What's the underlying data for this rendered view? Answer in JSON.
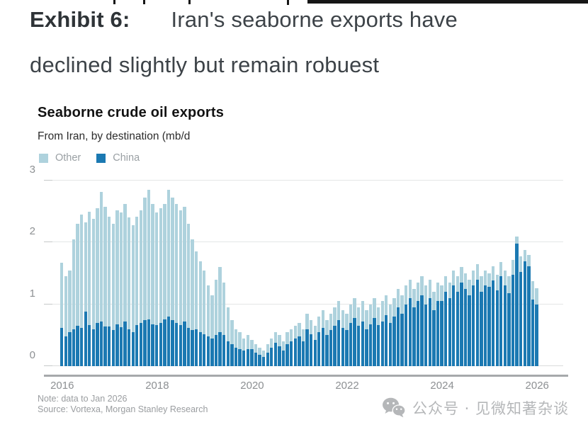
{
  "header": {
    "title_prefix": "Exhibit 6:",
    "title_line1": "Iran's seaborne exports have",
    "title_line2": "declined slightly but remain robuest"
  },
  "chart": {
    "title": "Seaborne crude oil exports",
    "subtitle": "From Iran, by destination (mb/d",
    "legend": [
      {
        "label": "Other",
        "color": "#aed2dd"
      },
      {
        "label": "China",
        "color": "#1b79b2"
      }
    ],
    "note": "Note: data to Jan 2026",
    "source": "Source: Vortexa, Morgan Stanley Research"
  },
  "watermark": {
    "text": "公众号 · 见微知著杂谈"
  },
  "chart_data": {
    "type": "bar",
    "stacked": true,
    "title": "Seaborne crude oil exports",
    "ylabel": "mb/d",
    "frequency": "monthly",
    "x_start": "2016-01",
    "x_end": "2026-01",
    "ylim": [
      0,
      3
    ],
    "y_ticks": [
      0,
      1,
      2,
      3
    ],
    "grid": true,
    "legend_position": "top-left",
    "x_tick_labels": [
      "2016",
      "2018",
      "2020",
      "2022",
      "2024",
      "2026"
    ],
    "x_tick_indices": [
      0,
      24,
      48,
      72,
      96,
      120
    ],
    "series": [
      {
        "name": "China",
        "color": "#1b79b2",
        "values": [
          0.62,
          0.48,
          0.55,
          0.6,
          0.65,
          0.62,
          0.88,
          0.66,
          0.6,
          0.7,
          0.72,
          0.64,
          0.64,
          0.58,
          0.68,
          0.63,
          0.72,
          0.6,
          0.55,
          0.66,
          0.7,
          0.74,
          0.76,
          0.68,
          0.66,
          0.7,
          0.76,
          0.8,
          0.74,
          0.7,
          0.66,
          0.72,
          0.62,
          0.58,
          0.6,
          0.55,
          0.52,
          0.48,
          0.45,
          0.5,
          0.55,
          0.5,
          0.4,
          0.35,
          0.3,
          0.28,
          0.25,
          0.28,
          0.28,
          0.22,
          0.18,
          0.15,
          0.22,
          0.3,
          0.38,
          0.32,
          0.25,
          0.35,
          0.4,
          0.45,
          0.48,
          0.4,
          0.6,
          0.52,
          0.42,
          0.55,
          0.62,
          0.5,
          0.58,
          0.65,
          0.75,
          0.62,
          0.58,
          0.7,
          0.78,
          0.65,
          0.72,
          0.6,
          0.68,
          0.78,
          0.66,
          0.72,
          0.82,
          0.7,
          0.8,
          0.95,
          0.85,
          1.0,
          1.1,
          0.95,
          1.05,
          1.15,
          1.0,
          1.1,
          0.9,
          1.05,
          1.05,
          1.2,
          1.1,
          1.3,
          1.2,
          1.35,
          1.25,
          1.15,
          1.3,
          1.4,
          1.2,
          1.3,
          1.28,
          1.38,
          1.22,
          1.45,
          1.3,
          1.18,
          1.48,
          1.98,
          1.52,
          1.7,
          1.62,
          1.08,
          1.0
        ]
      },
      {
        "name": "Other",
        "color": "#aed2dd",
        "values": [
          1.05,
          0.97,
          1.0,
          1.45,
          1.65,
          1.83,
          1.44,
          1.84,
          1.78,
          1.85,
          2.1,
          1.94,
          1.78,
          1.72,
          1.84,
          1.85,
          1.9,
          1.8,
          1.73,
          1.76,
          1.82,
          1.98,
          2.09,
          1.94,
          1.82,
          1.85,
          1.86,
          2.05,
          1.98,
          1.92,
          1.86,
          1.86,
          1.68,
          1.47,
          1.25,
          1.15,
          1.03,
          0.82,
          0.7,
          0.9,
          1.05,
          0.85,
          0.55,
          0.4,
          0.3,
          0.27,
          0.2,
          0.22,
          0.14,
          0.13,
          0.12,
          0.1,
          0.13,
          0.15,
          0.17,
          0.18,
          0.15,
          0.2,
          0.2,
          0.2,
          0.22,
          0.2,
          0.25,
          0.23,
          0.23,
          0.25,
          0.28,
          0.25,
          0.27,
          0.3,
          0.3,
          0.28,
          0.27,
          0.3,
          0.32,
          0.3,
          0.33,
          0.3,
          0.32,
          0.32,
          0.29,
          0.33,
          0.33,
          0.3,
          0.3,
          0.3,
          0.3,
          0.3,
          0.3,
          0.3,
          0.3,
          0.3,
          0.3,
          0.3,
          0.3,
          0.3,
          0.25,
          0.25,
          0.25,
          0.25,
          0.25,
          0.25,
          0.25,
          0.25,
          0.25,
          0.25,
          0.25,
          0.25,
          0.22,
          0.24,
          0.26,
          0.23,
          0.25,
          0.27,
          0.24,
          0.12,
          0.26,
          0.18,
          0.18,
          0.3,
          0.26
        ]
      }
    ]
  }
}
